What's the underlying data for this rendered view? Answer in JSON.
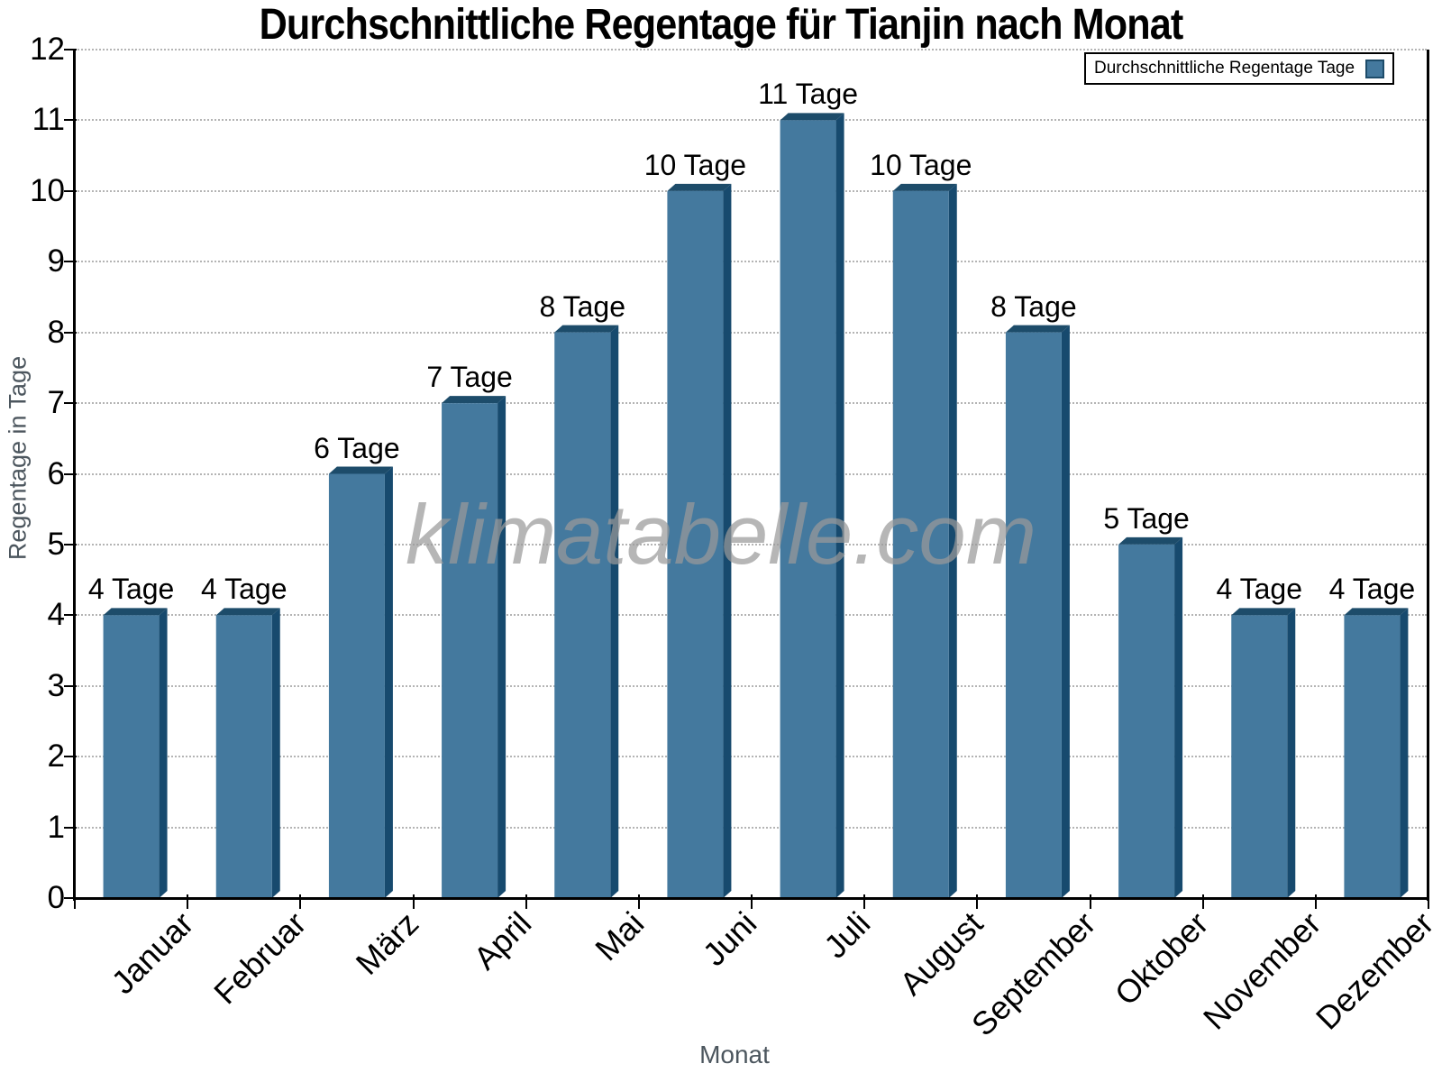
{
  "title": "Durchschnittliche Regentage für Tianjin nach Monat",
  "watermark": "klimatabelle.com",
  "legend": {
    "label": "Durchschnittliche Regentage Tage"
  },
  "axes": {
    "x_label": "Monat",
    "y_label": "Regentage in Tage"
  },
  "chart_data": {
    "type": "bar",
    "title": "Durchschnittliche Regentage für Tianjin nach Monat",
    "categories": [
      "Januar",
      "Februar",
      "März",
      "April",
      "Mai",
      "Juni",
      "Juli",
      "August",
      "September",
      "Oktober",
      "November",
      "Dezember"
    ],
    "values": [
      4,
      4,
      6,
      7,
      8,
      10,
      11,
      10,
      8,
      5,
      4,
      4
    ],
    "value_labels": [
      "4 Tage",
      "4 Tage",
      "6 Tage",
      "7 Tage",
      "8 Tage",
      "10 Tage",
      "11 Tage",
      "10 Tage",
      "8 Tage",
      "5 Tage",
      "4 Tage",
      "4 Tage"
    ],
    "series": [
      {
        "name": "Durchschnittliche Regentage Tage",
        "values": [
          4,
          4,
          6,
          7,
          8,
          10,
          11,
          10,
          8,
          5,
          4,
          4
        ]
      }
    ],
    "xlabel": "Monat",
    "ylabel": "Regentage in Tage",
    "ylim": [
      0,
      12
    ],
    "yticks": [
      0,
      1,
      2,
      3,
      4,
      5,
      6,
      7,
      8,
      9,
      10,
      11,
      12
    ],
    "grid": "horizontal-dotted",
    "legend_position": "top-right",
    "x_label_rotation": -45,
    "bar_style": "3d"
  },
  "colors": {
    "bar_face": "#44799E",
    "bar_side": "#174A6E",
    "bar_top": "#1D4C6A",
    "grid": "#b4b4b4",
    "axis": "#000000",
    "axis_title": "#4c565e",
    "watermark": "#9a9a9a",
    "text": "#000000"
  }
}
